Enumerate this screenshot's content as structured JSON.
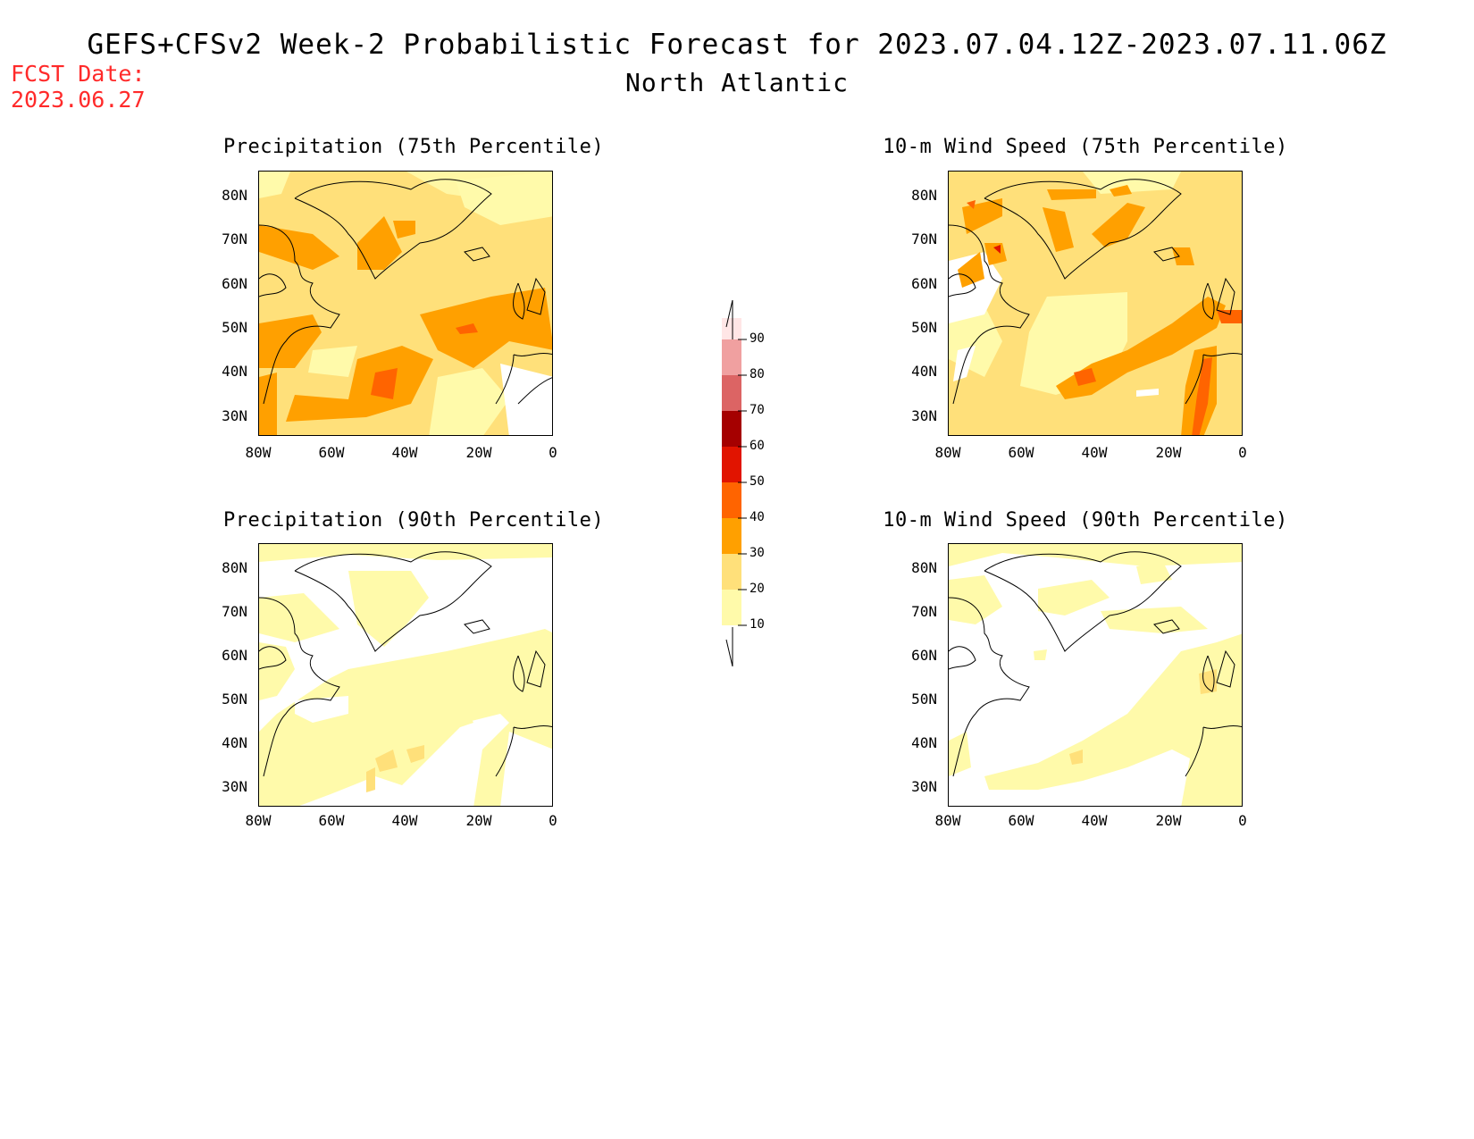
{
  "header": {
    "fcst_label": "FCST Date:",
    "fcst_date": "2023.06.27",
    "title": "GEFS+CFSv2 Week-2 Probabilistic Forecast for 2023.07.04.12Z-2023.07.11.06Z",
    "subtitle": "North Atlantic"
  },
  "panels": [
    {
      "title": "Precipitation (75th Percentile)",
      "variable": "precipitation",
      "percentile": 75,
      "base_level": 20
    },
    {
      "title": "10-m Wind Speed (75th Percentile)",
      "variable": "wind_speed",
      "percentile": 75,
      "base_level": 20
    },
    {
      "title": "Precipitation (90th Percentile)",
      "variable": "precipitation",
      "percentile": 90,
      "base_level": 10
    },
    {
      "title": "10-m Wind Speed (90th Percentile)",
      "variable": "wind_speed",
      "percentile": 90,
      "base_level": 0
    }
  ],
  "axes": {
    "lat_labels": [
      "80N",
      "70N",
      "60N",
      "50N",
      "40N",
      "30N"
    ],
    "lon_labels": [
      "80W",
      "60W",
      "40W",
      "20W",
      "0"
    ],
    "lat_range": [
      25,
      85
    ],
    "lon_range": [
      -80,
      0
    ]
  },
  "colorbar": {
    "labels": [
      "90",
      "80",
      "70",
      "60",
      "50",
      "40",
      "30",
      "20",
      "10"
    ],
    "levels": [
      10,
      20,
      30,
      40,
      50,
      60,
      70,
      80,
      90
    ],
    "colors": {
      "10": "#fffaaa",
      "20": "#ffe07a",
      "30": "#ffa000",
      "40": "#ff6400",
      "50": "#e11400",
      "60": "#a50000",
      "70": "#dc6464",
      "80": "#f0a0a0",
      "90": "#ffe6e6"
    }
  }
}
